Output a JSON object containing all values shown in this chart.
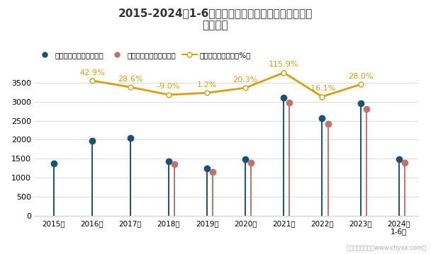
{
  "title": "2015-2024年1-6月有色金属冶炼和压延加工业企业利\n润统计图",
  "categories": [
    "2015年",
    "2016年",
    "2017年",
    "2018年",
    "2019年",
    "2020年",
    "2021年",
    "2022年",
    "2023年",
    "2024年\n1-6月"
  ],
  "profit_total": [
    1380,
    1970,
    2040,
    1430,
    1240,
    1490,
    3100,
    2560,
    2950,
    1480
  ],
  "profit_operating": [
    null,
    null,
    null,
    1350,
    1160,
    1390,
    2980,
    2420,
    2800,
    1400
  ],
  "growth_rate": [
    null,
    42.9,
    28.6,
    -9.0,
    1.2,
    20.3,
    115.9,
    -16.1,
    28.0,
    null
  ],
  "growth_labels": [
    "42.9%",
    "28.6%",
    "-9.0%",
    "1.2%",
    "20.3%",
    "115.9%",
    "-16.1%",
    "28.0%"
  ],
  "growth_label_indices": [
    1,
    2,
    3,
    4,
    5,
    6,
    7,
    8
  ],
  "growth_line_y": [
    null,
    3550,
    3380,
    3180,
    3230,
    3360,
    3760,
    3130,
    3450,
    null
  ],
  "ylim": [
    0,
    3800
  ],
  "yticks": [
    0,
    500,
    1000,
    1500,
    2000,
    2500,
    3000,
    3500
  ],
  "color_total": "#1a5276",
  "color_operating": "#c0736a",
  "color_growth": "#d4a017",
  "legend_label_total": "利润总额累计值（亿元）",
  "legend_label_operating": "营业利润累计值（亿元）",
  "legend_label_growth": "利润总额累计增长（%）",
  "watermark": "制图：智研咨询（www.chyxx.com）",
  "background_color": "#ffffff"
}
